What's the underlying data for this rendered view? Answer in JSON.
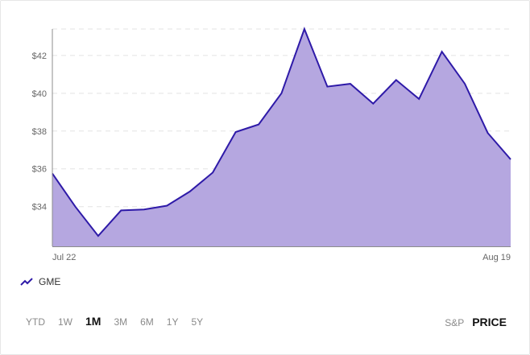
{
  "chart_data": {
    "type": "area",
    "series": [
      {
        "name": "GME",
        "values": [
          35.75,
          34.0,
          32.45,
          33.8,
          33.85,
          34.05,
          34.8,
          35.8,
          37.95,
          38.35,
          40.0,
          43.4,
          40.35,
          40.5,
          39.45,
          40.7,
          39.7,
          42.2,
          40.5,
          37.9,
          36.5
        ]
      }
    ],
    "x_tick_labels": [
      "Jul 22",
      "Aug 19"
    ],
    "y_ticks": [
      34,
      36,
      38,
      40,
      42
    ],
    "y_tick_labels": [
      "$34",
      "$36",
      "$38",
      "$40",
      "$42"
    ],
    "ylim": [
      31.9,
      43.4
    ],
    "grid": "horizontal dashed",
    "legend_position": "bottom-left"
  },
  "legend": {
    "label": "GME"
  },
  "range_buttons": [
    {
      "label": "YTD",
      "active": false
    },
    {
      "label": "1W",
      "active": false
    },
    {
      "label": "1M",
      "active": true
    },
    {
      "label": "3M",
      "active": false
    },
    {
      "label": "6M",
      "active": false
    },
    {
      "label": "1Y",
      "active": false
    },
    {
      "label": "5Y",
      "active": false
    }
  ],
  "mode_buttons": [
    {
      "label": "S&P",
      "active": false
    },
    {
      "label": "PRICE",
      "active": true
    }
  ],
  "colors": {
    "line": "#2e1aa8",
    "area": "#b5a7e0",
    "grid": "#e3e3e3",
    "axis": "#8c8c8c",
    "tick_text": "#666666"
  }
}
